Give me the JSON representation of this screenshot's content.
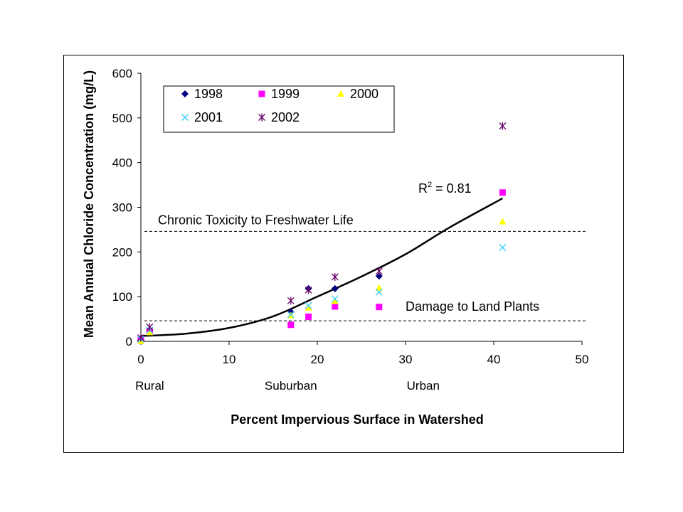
{
  "chart_data": {
    "type": "scatter",
    "xlabel": "Percent Impervious Surface in Watershed",
    "ylabel": "Mean Annual Chloride Concentration (mg/L)",
    "xlim": [
      0,
      50
    ],
    "ylim": [
      0,
      600
    ],
    "x_ticks": [
      0,
      10,
      20,
      30,
      40,
      50
    ],
    "y_ticks": [
      0,
      100,
      200,
      300,
      400,
      500,
      600
    ],
    "grid": false,
    "legend_position": "top-left",
    "category_labels": [
      {
        "x": 1,
        "label": "Rural"
      },
      {
        "x": 17,
        "label": "Suburban"
      },
      {
        "x": 32,
        "label": "Urban"
      }
    ],
    "series": [
      {
        "name": "1998",
        "marker": "diamond",
        "color": "#000080",
        "points": [
          [
            0,
            5
          ],
          [
            1,
            22
          ],
          [
            17,
            66
          ],
          [
            19,
            118
          ],
          [
            22,
            118
          ],
          [
            27,
            146
          ]
        ]
      },
      {
        "name": "1999",
        "marker": "square",
        "color": "#ff00ff",
        "points": [
          [
            0,
            4
          ],
          [
            1,
            22
          ],
          [
            17,
            37
          ],
          [
            19,
            55
          ],
          [
            22,
            78
          ],
          [
            27,
            77
          ],
          [
            41,
            333
          ]
        ]
      },
      {
        "name": "2000",
        "marker": "triangle",
        "color": "#ffff00",
        "points": [
          [
            0,
            0
          ],
          [
            1,
            20
          ],
          [
            17,
            58
          ],
          [
            19,
            75
          ],
          [
            22,
            90
          ],
          [
            27,
            120
          ],
          [
            41,
            268
          ]
        ]
      },
      {
        "name": "2001",
        "marker": "x",
        "color": "#33ccff",
        "points": [
          [
            0,
            5
          ],
          [
            1,
            25
          ],
          [
            17,
            60
          ],
          [
            19,
            80
          ],
          [
            22,
            95
          ],
          [
            27,
            110
          ],
          [
            41,
            210
          ]
        ]
      },
      {
        "name": "2002",
        "marker": "asterisk",
        "color": "#660066",
        "points": [
          [
            0,
            8
          ],
          [
            1,
            32
          ],
          [
            17,
            91
          ],
          [
            19,
            115
          ],
          [
            22,
            144
          ],
          [
            27,
            157
          ],
          [
            41,
            482
          ]
        ]
      }
    ],
    "trendline": {
      "type": "polynomial",
      "points": [
        [
          0,
          12
        ],
        [
          5,
          17
        ],
        [
          10,
          30
        ],
        [
          15,
          56
        ],
        [
          20,
          100
        ],
        [
          25,
          145
        ],
        [
          30,
          195
        ],
        [
          35,
          255
        ],
        [
          41,
          320
        ]
      ],
      "label": "R² = 0.81",
      "r2_value": "0.81"
    },
    "reference_lines": [
      {
        "y": 246,
        "label": "Chronic Toxicity to Freshwater Life",
        "style": "dashed"
      },
      {
        "y": 46,
        "label": "Damage to Land Plants",
        "style": "dashed"
      }
    ]
  }
}
